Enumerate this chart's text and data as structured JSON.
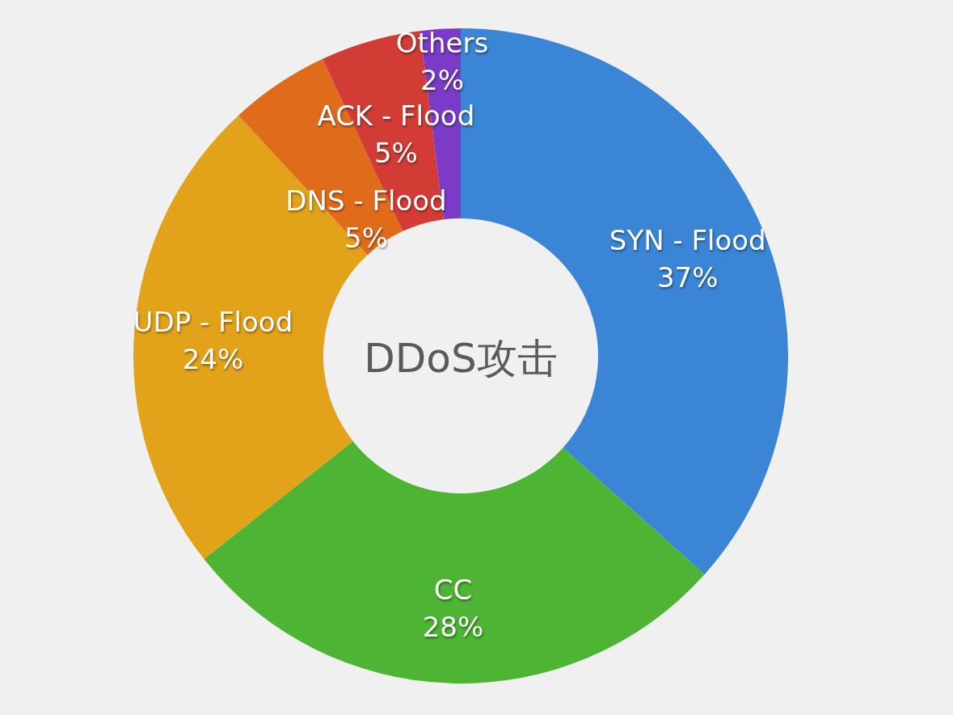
{
  "chart_data": {
    "type": "donut",
    "title": "DDoS攻击",
    "categories": [
      "SYN - Flood",
      "CC",
      "UDP - Flood",
      "DNS - Flood",
      "ACK - Flood",
      "Others"
    ],
    "values": [
      37,
      28,
      24,
      5,
      5,
      2
    ],
    "value_labels": [
      "37%",
      "28%",
      "24%",
      "5%",
      "5%",
      "2%"
    ],
    "colors": [
      "#3a85d5",
      "#4db533",
      "#e2a31b",
      "#e06b1b",
      "#d23c34",
      "#7b3bc6"
    ]
  }
}
